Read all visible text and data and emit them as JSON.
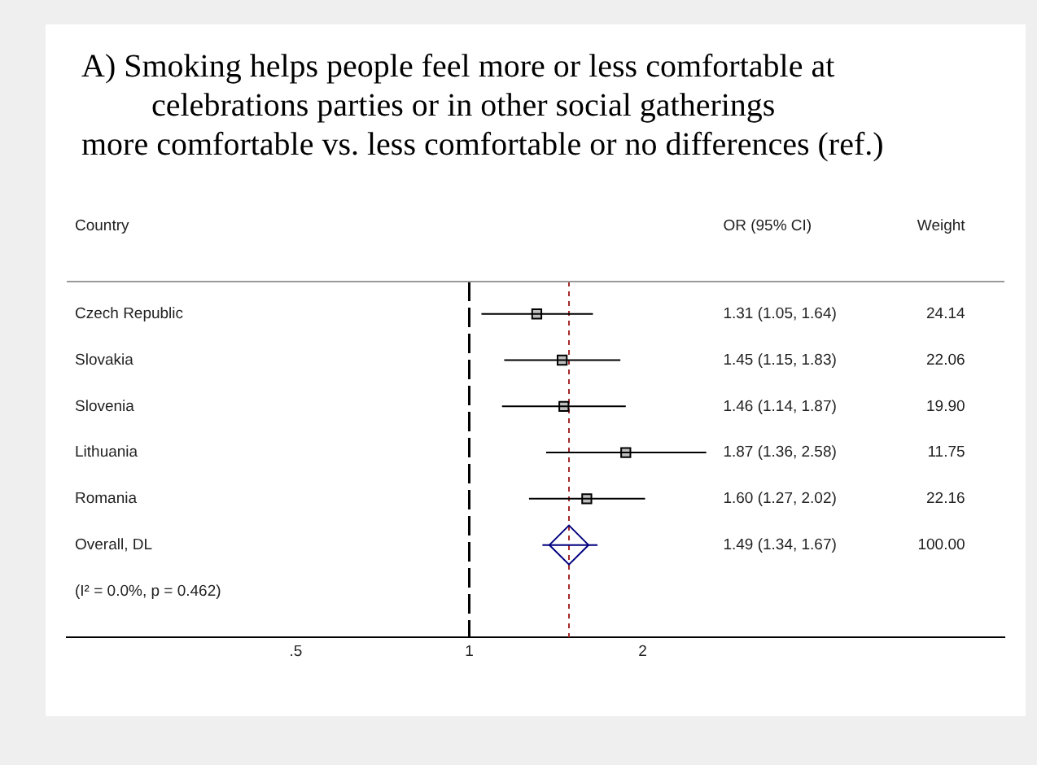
{
  "chart_data": {
    "type": "scatter",
    "orientation": "horizontal",
    "title": "A)  Smoking helps people feel more or less comfortable at celebrations parties or in other social gatherings",
    "subtitle": "more comfortable vs. less comfortable or no differences (ref.)",
    "ylabel": "Country",
    "categories": [
      "Czech Republic",
      "Slovakia",
      "Slovenia",
      "Lithuania",
      "Romania",
      "Overall, DL"
    ],
    "series": [
      {
        "color": "#000000",
        "marker": "square",
        "values": [
          1.31,
          1.45,
          1.46,
          1.87,
          1.6,
          null
        ],
        "errors": [
          [
            1.05,
            1.64
          ],
          [
            1.15,
            1.83
          ],
          [
            1.14,
            1.87
          ],
          [
            1.36,
            2.58
          ],
          [
            1.27,
            2.02
          ],
          null
        ]
      },
      {
        "color": "#000080",
        "marker": "diamond",
        "values": [
          null,
          null,
          null,
          null,
          null,
          1.49
        ],
        "errors": [
          null,
          null,
          null,
          null,
          null,
          [
            1.34,
            1.67
          ]
        ]
      }
    ],
    "annotations": [
      "OR (95% CI)",
      "Weight",
      "1.31 (1.05, 1.64)",
      "1.45 (1.15, 1.83)",
      "1.46 (1.14, 1.87)",
      "1.87 (1.36, 2.58)",
      "1.60 (1.27, 2.02)",
      "1.49 (1.34, 1.67)",
      "24.14",
      "22.06",
      "19.90",
      "11.75",
      "22.16",
      "100.00",
      "(I² = 0.0%, p = 0.462)"
    ],
    "ref_lines": [
      {
        "axis": "x",
        "value": 1,
        "color": "#000000",
        "line_style": "dashed"
      },
      {
        "axis": "x",
        "value": 1.49,
        "color": "#a52a2a",
        "line_style": "dotted"
      }
    ],
    "log": "x",
    "xlim": [
      0.2,
      8.5
    ],
    "xticks": [
      {
        "value": 0.5,
        "label": ".5"
      },
      1,
      2
    ],
    "grid": false,
    "legend": false
  }
}
